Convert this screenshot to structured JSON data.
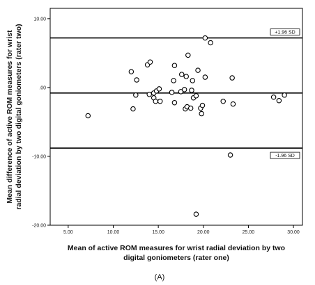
{
  "chart_data": {
    "type": "scatter",
    "title": "",
    "panel_label": "(A)",
    "xlabel": [
      "Mean of active ROM measures for wrist radial deviation by two",
      "digital goniometers (rater one)"
    ],
    "ylabel": [
      "Mean difference of active ROM measures for wrist",
      "radial deviation by two digital goniometers (rater two)"
    ],
    "xlim": [
      3.0,
      31.0
    ],
    "ylim": [
      -20.0,
      11.5
    ],
    "x_ticks": [
      5,
      10,
      15,
      20,
      25,
      30
    ],
    "x_tick_labels": [
      "5.00",
      "10.00",
      "15.00",
      "20.00",
      "25.00",
      "30.00"
    ],
    "y_ticks": [
      10,
      0,
      -10,
      -20
    ],
    "y_tick_labels": [
      "10.00",
      ".00",
      "-10.00",
      "-20.00"
    ],
    "grid": false,
    "reference_lines": [
      {
        "label": "+1.96 SD",
        "y": 7.2
      },
      {
        "label": "",
        "y": -0.8
      },
      {
        "label": "-1.96 SD",
        "y": -8.8
      }
    ],
    "points": [
      {
        "x": 7.2,
        "y": -4.1
      },
      {
        "x": 12.0,
        "y": 2.3
      },
      {
        "x": 12.2,
        "y": -3.1
      },
      {
        "x": 12.5,
        "y": -1.1
      },
      {
        "x": 12.6,
        "y": 1.1
      },
      {
        "x": 13.8,
        "y": 3.3
      },
      {
        "x": 14.0,
        "y": -1.0
      },
      {
        "x": 14.1,
        "y": 3.7
      },
      {
        "x": 14.5,
        "y": -0.8
      },
      {
        "x": 14.5,
        "y": -1.5
      },
      {
        "x": 14.7,
        "y": -2.0
      },
      {
        "x": 14.8,
        "y": -0.5
      },
      {
        "x": 15.1,
        "y": -0.2
      },
      {
        "x": 15.2,
        "y": -2.0
      },
      {
        "x": 16.5,
        "y": -0.7
      },
      {
        "x": 16.7,
        "y": 1.0
      },
      {
        "x": 16.8,
        "y": -2.2
      },
      {
        "x": 16.8,
        "y": 3.2
      },
      {
        "x": 17.5,
        "y": -0.6
      },
      {
        "x": 17.6,
        "y": 1.9
      },
      {
        "x": 17.9,
        "y": -0.3
      },
      {
        "x": 18.0,
        "y": -3.1
      },
      {
        "x": 18.1,
        "y": 1.6
      },
      {
        "x": 18.2,
        "y": -2.8
      },
      {
        "x": 18.3,
        "y": 4.7
      },
      {
        "x": 18.6,
        "y": -3.0
      },
      {
        "x": 18.7,
        "y": -0.4
      },
      {
        "x": 18.8,
        "y": 1.0
      },
      {
        "x": 18.9,
        "y": -1.5
      },
      {
        "x": 19.2,
        "y": -1.2
      },
      {
        "x": 19.4,
        "y": 2.5
      },
      {
        "x": 19.7,
        "y": -3.0
      },
      {
        "x": 19.8,
        "y": -3.8
      },
      {
        "x": 19.9,
        "y": -2.6
      },
      {
        "x": 20.2,
        "y": 1.5
      },
      {
        "x": 20.2,
        "y": 7.2
      },
      {
        "x": 20.8,
        "y": 6.5
      },
      {
        "x": 22.2,
        "y": -2.0
      },
      {
        "x": 23.0,
        "y": -9.8
      },
      {
        "x": 23.2,
        "y": 1.4
      },
      {
        "x": 23.3,
        "y": -2.4
      },
      {
        "x": 27.8,
        "y": -1.4
      },
      {
        "x": 28.4,
        "y": -1.9
      },
      {
        "x": 29.0,
        "y": -1.1
      },
      {
        "x": 19.2,
        "y": -18.4
      }
    ]
  }
}
